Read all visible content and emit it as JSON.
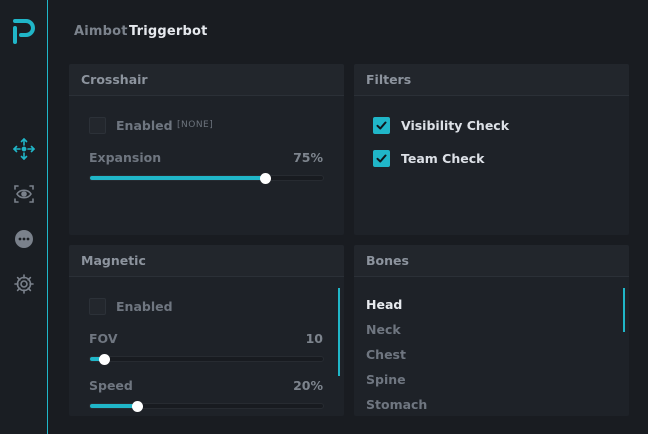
{
  "colors": {
    "accent": "#20b6c8",
    "background": "#191c21",
    "panel": "#1e2228"
  },
  "sidebar": {
    "logo": "p-logo-icon",
    "items": [
      {
        "name": "crosshair-move-icon",
        "active": true
      },
      {
        "name": "eye-scan-icon",
        "active": false
      },
      {
        "name": "chat-bubble-icon",
        "active": false
      },
      {
        "name": "gear-icon",
        "active": false
      }
    ]
  },
  "tabs": [
    {
      "label": "Aimbot",
      "active": false
    },
    {
      "label": "Triggerbot",
      "active": true
    }
  ],
  "crosshair": {
    "title": "Crosshair",
    "enabled_label": "Enabled",
    "enabled": false,
    "keybind": "[NONE]",
    "expansion_label": "Expansion",
    "expansion_value": "75%",
    "expansion_fraction": 0.75
  },
  "filters": {
    "title": "Filters",
    "items": [
      {
        "label": "Visibility Check",
        "checked": true
      },
      {
        "label": "Team Check",
        "checked": true
      }
    ]
  },
  "magnetic": {
    "title": "Magnetic",
    "enabled_label": "Enabled",
    "enabled": false,
    "fov_label": "FOV",
    "fov_value": "10",
    "fov_fraction": 0.06,
    "speed_label": "Speed",
    "speed_value": "20%",
    "speed_fraction": 0.2
  },
  "bones": {
    "title": "Bones",
    "items": [
      {
        "label": "Head",
        "selected": true
      },
      {
        "label": "Neck",
        "selected": false
      },
      {
        "label": "Chest",
        "selected": false
      },
      {
        "label": "Spine",
        "selected": false
      },
      {
        "label": "Stomach",
        "selected": false
      }
    ]
  }
}
